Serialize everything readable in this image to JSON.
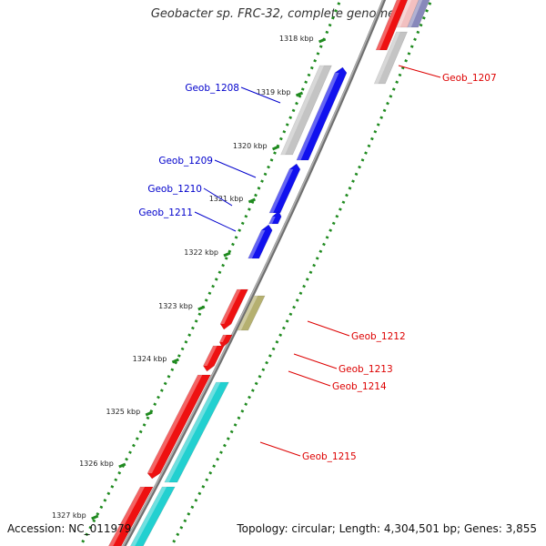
{
  "title": "Geobacter sp. FRC-32, complete genome",
  "footer": {
    "accession": "Accession: NC_011979",
    "summary": "Topology: circular; Length: 4,304,501 bp; Genes: 3,855"
  },
  "colors": {
    "backbone": "#808080",
    "tick": "#1f8a1f",
    "forward_label": "#0000cc",
    "reverse_label": "#dd0000",
    "red_gene": "#ee1111",
    "blue_gene": "#1111ee",
    "gray_gene": "#c4c4c4",
    "olive_gene": "#b5b070",
    "cyan_gene": "#22d0d0"
  },
  "ticks": [
    "1318 kbp",
    "1319 kbp",
    "1320 kbp",
    "1321 kbp",
    "1322 kbp",
    "1323 kbp",
    "1324 kbp",
    "1325 kbp",
    "1326 kbp",
    "1327 kbp"
  ],
  "genes": [
    {
      "label": "Geob_1207",
      "side": "right"
    },
    {
      "label": "Geob_1208",
      "side": "left"
    },
    {
      "label": "Geob_1209",
      "side": "left"
    },
    {
      "label": "Geob_1210",
      "side": "left"
    },
    {
      "label": "Geob_1211",
      "side": "left"
    },
    {
      "label": "Geob_1212",
      "side": "right"
    },
    {
      "label": "Geob_1213",
      "side": "right"
    },
    {
      "label": "Geob_1214",
      "side": "right"
    },
    {
      "label": "Geob_1215",
      "side": "right"
    }
  ]
}
